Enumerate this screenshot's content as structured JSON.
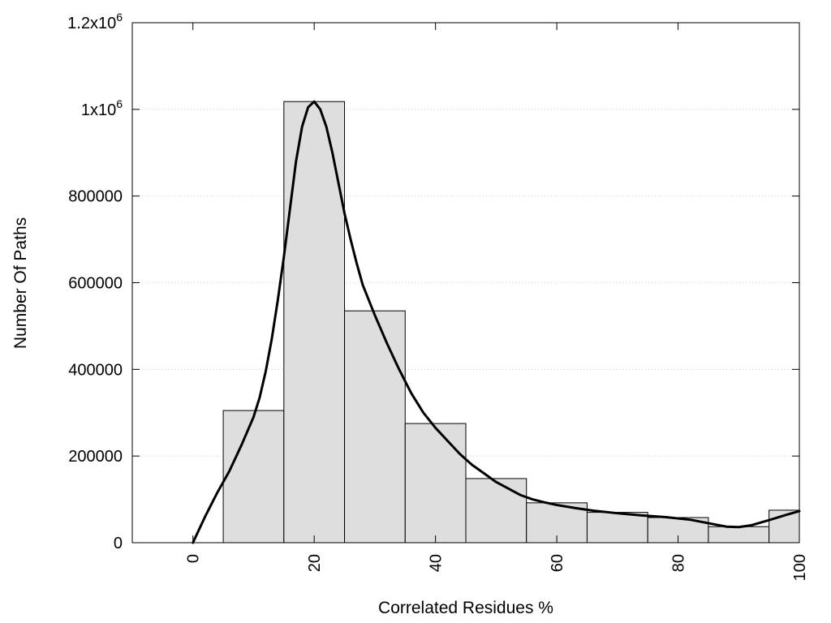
{
  "chart_data": {
    "type": "bar",
    "xlabel": "Correlated Residues %",
    "ylabel": "Number Of Paths",
    "xlim": [
      -10,
      100
    ],
    "ylim": [
      0,
      1200000
    ],
    "grid": "horizontal dotted",
    "x_ticks": [
      {
        "value": 0,
        "label": "0"
      },
      {
        "value": 20,
        "label": "20"
      },
      {
        "value": 40,
        "label": "40"
      },
      {
        "value": 60,
        "label": "60"
      },
      {
        "value": 80,
        "label": "80"
      },
      {
        "value": 100,
        "label": "100"
      }
    ],
    "y_ticks": [
      {
        "value": 0,
        "label": "0",
        "sup": ""
      },
      {
        "value": 200000,
        "label": "200000",
        "sup": ""
      },
      {
        "value": 400000,
        "label": "400000",
        "sup": ""
      },
      {
        "value": 600000,
        "label": "600000",
        "sup": ""
      },
      {
        "value": 800000,
        "label": "800000",
        "sup": ""
      },
      {
        "value": 1000000,
        "label": "1x10",
        "sup": "6"
      },
      {
        "value": 1200000,
        "label": "1.2x10",
        "sup": "6"
      }
    ],
    "bar_fill": "#dedede",
    "bin_width": 10,
    "bins": [
      {
        "center": 10,
        "value": 305000
      },
      {
        "center": 20,
        "value": 1018000
      },
      {
        "center": 30,
        "value": 535000
      },
      {
        "center": 40,
        "value": 275000
      },
      {
        "center": 50,
        "value": 148000
      },
      {
        "center": 60,
        "value": 92000
      },
      {
        "center": 70,
        "value": 70000
      },
      {
        "center": 80,
        "value": 58000
      },
      {
        "center": 90,
        "value": 37000
      },
      {
        "center": 100,
        "value": 75000
      }
    ],
    "curve": {
      "type": "line",
      "color": "#000000",
      "points": [
        [
          0,
          0
        ],
        [
          2,
          60000
        ],
        [
          4,
          115000
        ],
        [
          6,
          165000
        ],
        [
          8,
          225000
        ],
        [
          10,
          290000
        ],
        [
          11,
          335000
        ],
        [
          12,
          395000
        ],
        [
          13,
          470000
        ],
        [
          14,
          560000
        ],
        [
          15,
          660000
        ],
        [
          16,
          770000
        ],
        [
          17,
          880000
        ],
        [
          18,
          960000
        ],
        [
          19,
          1005000
        ],
        [
          20,
          1018000
        ],
        [
          21,
          1000000
        ],
        [
          22,
          960000
        ],
        [
          23,
          900000
        ],
        [
          24,
          830000
        ],
        [
          25,
          760000
        ],
        [
          26,
          700000
        ],
        [
          27,
          645000
        ],
        [
          28,
          595000
        ],
        [
          30,
          525000
        ],
        [
          32,
          460000
        ],
        [
          34,
          400000
        ],
        [
          36,
          345000
        ],
        [
          38,
          300000
        ],
        [
          40,
          265000
        ],
        [
          42,
          235000
        ],
        [
          44,
          205000
        ],
        [
          46,
          180000
        ],
        [
          48,
          160000
        ],
        [
          50,
          140000
        ],
        [
          52,
          125000
        ],
        [
          54,
          110000
        ],
        [
          56,
          100000
        ],
        [
          58,
          93000
        ],
        [
          60,
          87000
        ],
        [
          63,
          80000
        ],
        [
          66,
          74000
        ],
        [
          70,
          68000
        ],
        [
          74,
          63000
        ],
        [
          78,
          59000
        ],
        [
          82,
          53000
        ],
        [
          85,
          45000
        ],
        [
          88,
          37000
        ],
        [
          90,
          36000
        ],
        [
          92,
          40000
        ],
        [
          95,
          52000
        ],
        [
          98,
          65000
        ],
        [
          100,
          73000
        ]
      ]
    }
  }
}
